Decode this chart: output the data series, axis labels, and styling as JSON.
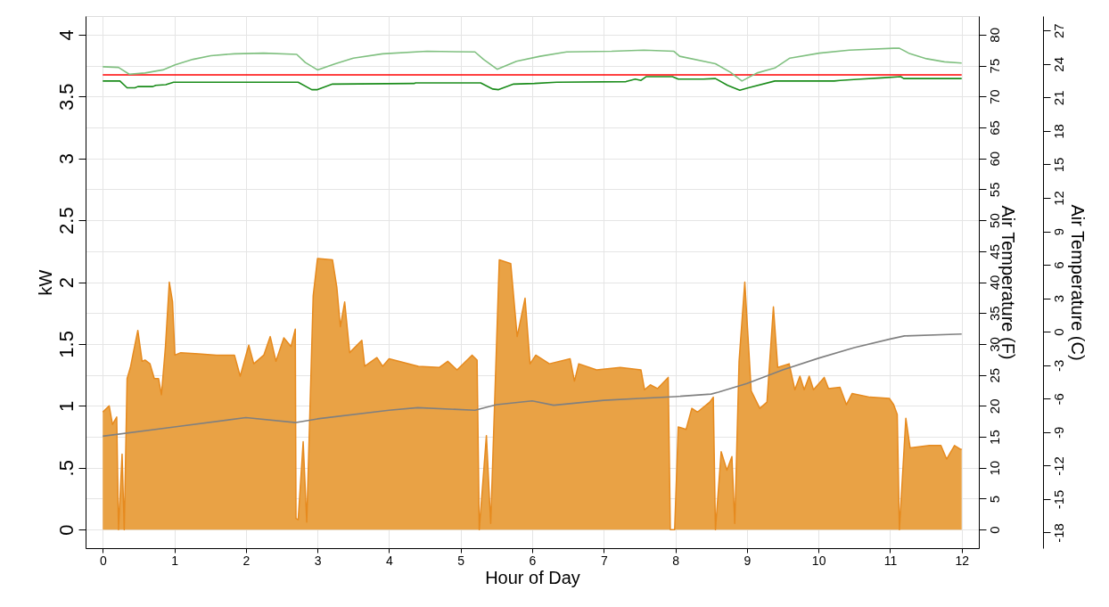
{
  "chart_data": {
    "type": "area",
    "xlabel": "Hour of Day",
    "ylabel": "kW",
    "y2label": "Air Temperature (F)",
    "y3label": "Air Temperature (C)",
    "xlim": [
      -0.24,
      12.24
    ],
    "xticks": [
      0,
      1,
      2,
      3,
      4,
      5,
      6,
      7,
      8,
      9,
      10,
      11,
      12
    ],
    "ylim": [
      -0.15,
      4.15
    ],
    "yticks": [
      0,
      {
        "value": 0.5,
        "label": ".5"
      },
      1,
      1.5,
      2,
      2.5,
      3,
      3.5,
      4
    ],
    "y2lim": [
      -3,
      83
    ],
    "y2ticks": [
      0,
      5,
      10,
      15,
      20,
      25,
      30,
      35,
      40,
      45,
      50,
      55,
      60,
      65,
      70,
      75,
      80
    ],
    "y3lim": [
      -19.4,
      28.3
    ],
    "y3ticks": [
      -18,
      -15,
      -12,
      -9,
      -6,
      -3,
      0,
      3,
      6,
      9,
      12,
      15,
      18,
      21,
      24,
      27
    ],
    "grid": true,
    "series": [
      {
        "color": "#e9a245",
        "x": [
          0,
          0.09,
          0.136,
          0.195,
          0.22,
          0.27,
          0.3,
          0.34,
          0.386,
          0.427,
          0.49,
          0.55,
          0.59,
          0.66,
          0.72,
          0.78,
          0.82,
          0.876,
          0.93,
          0.975,
          1.008,
          1.09,
          1.34,
          1.59,
          1.84,
          1.92,
          2.04,
          2.11,
          2.25,
          2.34,
          2.42,
          2.53,
          2.63,
          2.69,
          2.7,
          2.73,
          2.8,
          2.85,
          2.94,
          3.0,
          3.21,
          3.27,
          3.32,
          3.38,
          3.45,
          3.62,
          3.66,
          3.83,
          3.91,
          4.0,
          4.41,
          4.7,
          4.82,
          4.95,
          5.16,
          5.23,
          5.26,
          5.36,
          5.42,
          5.54,
          5.7,
          5.79,
          5.9,
          5.97,
          6.05,
          6.24,
          6.53,
          6.59,
          6.65,
          6.9,
          7.23,
          7.52,
          7.57,
          7.65,
          7.75,
          7.9,
          7.93,
          7.99,
          8.04,
          8.15,
          8.23,
          8.31,
          8.48,
          8.53,
          8.56,
          8.64,
          8.72,
          8.79,
          8.83,
          8.89,
          8.97,
          9.06,
          9.18,
          9.28,
          9.37,
          9.43,
          9.59,
          9.67,
          9.74,
          9.8,
          9.87,
          9.93,
          10.08,
          10.14,
          10.3,
          10.39,
          10.47,
          10.72,
          10.99,
          11.05,
          11.1,
          11.13,
          11.22,
          11.28,
          11.55,
          11.71,
          11.79,
          11.9,
          11.98,
          12.0
        ],
        "values": [
          0.95,
          1.0,
          0.85,
          0.91,
          0,
          0.61,
          0,
          1.22,
          1.31,
          1.43,
          1.61,
          1.36,
          1.37,
          1.34,
          1.22,
          1.22,
          1.09,
          1.48,
          2.0,
          1.84,
          1.41,
          1.43,
          1.42,
          1.41,
          1.41,
          1.24,
          1.49,
          1.34,
          1.41,
          1.56,
          1.36,
          1.55,
          1.48,
          1.62,
          0.09,
          0.08,
          0.71,
          0.06,
          1.89,
          2.19,
          2.18,
          1.96,
          1.64,
          1.84,
          1.43,
          1.53,
          1.32,
          1.39,
          1.32,
          1.38,
          1.32,
          1.31,
          1.36,
          1.29,
          1.41,
          1.37,
          0,
          0.76,
          0.05,
          2.18,
          2.15,
          1.56,
          1.87,
          1.34,
          1.41,
          1.34,
          1.38,
          1.2,
          1.34,
          1.29,
          1.31,
          1.29,
          1.13,
          1.17,
          1.14,
          1.23,
          0,
          0,
          0.83,
          0.81,
          0.98,
          0.95,
          1.03,
          1.07,
          0,
          0.63,
          0.48,
          0.59,
          0.05,
          1.36,
          2.0,
          1.12,
          0.98,
          1.03,
          1.8,
          1.31,
          1.34,
          1.13,
          1.24,
          1.13,
          1.24,
          1.13,
          1.23,
          1.14,
          1.15,
          1.01,
          1.1,
          1.07,
          1.06,
          1.01,
          0.93,
          0,
          0.9,
          0.66,
          0.68,
          0.68,
          0.57,
          0.68,
          0.65,
          0.65
        ]
      },
      {
        "type": "line",
        "axis": "y2",
        "color": "#808080",
        "x": [
          0,
          1,
          2,
          2.7,
          3,
          4,
          4.4,
          5.2,
          5.5,
          6,
          6.3,
          7,
          7.5,
          8,
          8.5,
          8.6,
          9,
          9.5,
          10,
          10.5,
          11,
          11.2,
          12
        ],
        "values": [
          15.1,
          16.6,
          18.1,
          17.3,
          17.9,
          19.3,
          19.7,
          19.3,
          20.2,
          20.8,
          20.1,
          20.9,
          21.2,
          21.5,
          21.9,
          22.2,
          23.6,
          25.8,
          27.7,
          29.4,
          30.8,
          31.3,
          31.6
        ]
      },
      {
        "type": "line",
        "axis": "y2",
        "color": "#ff0000",
        "x": [
          0,
          12
        ],
        "values": [
          73.5,
          73.5
        ]
      },
      {
        "type": "line",
        "axis": "y2",
        "color": "#1a8c1a",
        "x": [
          0,
          0.24,
          0.34,
          0.45,
          0.49,
          0.7,
          0.74,
          0.88,
          0.99,
          2.73,
          2.92,
          3.0,
          3.21,
          4.35,
          4.37,
          5.28,
          5.45,
          5.53,
          5.74,
          6.03,
          6.34,
          7.31,
          7.44,
          7.52,
          7.59,
          7.96,
          8.04,
          8.39,
          8.56,
          8.73,
          8.9,
          9.02,
          9.39,
          10.22,
          10.3,
          10.59,
          10.88,
          11.15,
          11.19,
          12.0
        ],
        "values": [
          72.5,
          72.5,
          71.4,
          71.4,
          71.6,
          71.6,
          71.8,
          71.9,
          72.3,
          72.3,
          71.1,
          71.1,
          72.0,
          72.1,
          72.2,
          72.2,
          71.2,
          71.1,
          72.0,
          72.1,
          72.3,
          72.4,
          72.8,
          72.6,
          73.2,
          73.2,
          72.8,
          72.8,
          72.9,
          71.8,
          71.0,
          71.4,
          72.5,
          72.5,
          72.6,
          72.8,
          73.0,
          73.2,
          72.9,
          72.9
        ]
      },
      {
        "type": "line",
        "axis": "y2",
        "color": "#80c080",
        "x": [
          0,
          0.22,
          0.37,
          0.59,
          0.84,
          1.01,
          1.26,
          1.51,
          1.84,
          2.25,
          2.71,
          2.83,
          3.0,
          3.25,
          3.5,
          3.91,
          4.53,
          5.2,
          5.32,
          5.51,
          5.78,
          6.11,
          6.48,
          7.11,
          7.56,
          7.98,
          8.06,
          8.56,
          8.77,
          8.93,
          9.14,
          9.39,
          9.6,
          10.01,
          10.43,
          11.05,
          11.13,
          11.26,
          11.51,
          11.76,
          12.0
        ],
        "values": [
          74.8,
          74.7,
          73.6,
          73.8,
          74.3,
          75.1,
          76.0,
          76.6,
          76.9,
          77.0,
          76.8,
          75.5,
          74.3,
          75.3,
          76.2,
          76.9,
          77.3,
          77.2,
          76.0,
          74.4,
          75.7,
          76.5,
          77.2,
          77.3,
          77.5,
          77.3,
          76.5,
          75.3,
          73.9,
          72.5,
          73.8,
          74.6,
          76.2,
          77.0,
          77.5,
          77.8,
          77.8,
          77.0,
          76.1,
          75.6,
          75.4
        ]
      }
    ]
  }
}
